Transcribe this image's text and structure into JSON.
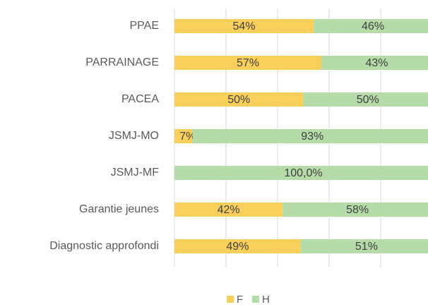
{
  "chart_data": {
    "type": "stacked-barh",
    "categories": [
      "PPAE",
      "PARRAINAGE",
      "PACEA",
      "JSMJ-MO",
      "JSMJ-MF",
      "Garantie jeunes",
      "Diagnostic approfondi"
    ],
    "series": [
      {
        "name": "F",
        "color": "#f9cf5b",
        "values": [
          54,
          57,
          50,
          7,
          0,
          42,
          49
        ],
        "value_labels": [
          "54%",
          "57%",
          "50%",
          "7%",
          null,
          "42%",
          "49%"
        ]
      },
      {
        "name": "H",
        "color": "#b4dba8",
        "values": [
          46,
          43,
          50,
          93,
          100,
          58,
          51
        ],
        "value_labels": [
          "46%",
          "43%",
          "50%",
          "93%",
          "100,0%",
          "58%",
          "51%"
        ]
      }
    ],
    "xlim": [
      0,
      100
    ],
    "xticks": [
      0,
      20,
      40,
      60,
      80,
      100
    ],
    "grid": true,
    "legend": "bottom"
  }
}
